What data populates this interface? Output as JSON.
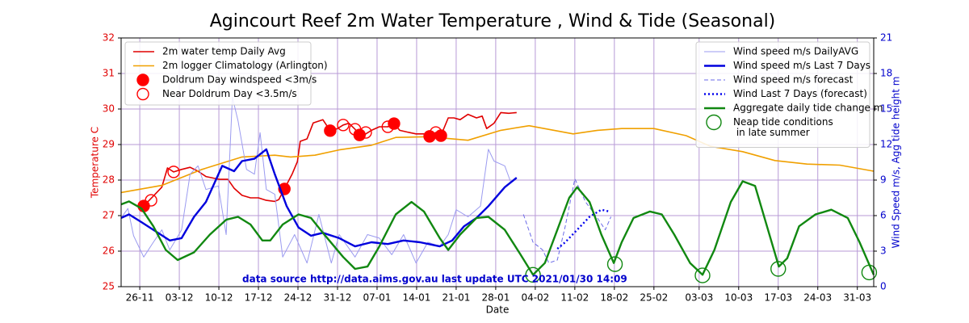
{
  "chart_data": {
    "type": "line",
    "title": "Agincourt Reef 2m Water Temperature , Wind & Tide (Seasonal)",
    "xlabel": "Date",
    "ylabel": "Temperature  C",
    "y2label": "Wind Speed m/s, Agg tide height m",
    "annotation": "data source http://data.aims.gov.au last update UTC 2021/01/30 14:09",
    "xlim": [
      -3.3,
      129.9
    ],
    "xticks": [
      {
        "value": 0,
        "label": "26-11"
      },
      {
        "value": 7,
        "label": "03-12"
      },
      {
        "value": 14,
        "label": "10-12"
      },
      {
        "value": 21,
        "label": "17-12"
      },
      {
        "value": 28,
        "label": "24-12"
      },
      {
        "value": 35,
        "label": "31-12"
      },
      {
        "value": 42,
        "label": "07-01"
      },
      {
        "value": 49,
        "label": "14-01"
      },
      {
        "value": 56,
        "label": "21-01"
      },
      {
        "value": 63,
        "label": "28-01"
      },
      {
        "value": 70,
        "label": "04-02"
      },
      {
        "value": 77,
        "label": "11-02"
      },
      {
        "value": 84,
        "label": "18-02"
      },
      {
        "value": 91,
        "label": "25-02"
      },
      {
        "value": 99,
        "label": "03-03"
      },
      {
        "value": 106,
        "label": "10-03"
      },
      {
        "value": 113,
        "label": "17-03"
      },
      {
        "value": 120,
        "label": "24-03"
      },
      {
        "value": 127,
        "label": "31-03"
      }
    ],
    "ylim": [
      25,
      32
    ],
    "yticks": [
      25,
      26,
      27,
      28,
      29,
      30,
      31,
      32
    ],
    "y2lim": [
      0,
      21
    ],
    "y2ticks": [
      0,
      3,
      6,
      9,
      12,
      15,
      18,
      21
    ],
    "grid": true,
    "legend": {
      "y": "upper left",
      "y2": "upper right"
    },
    "series": [
      {
        "name": "2m water temp Daily Avg",
        "type": "line",
        "color": "#e00000",
        "linewidth": 1.6,
        "linestyle": "solid",
        "x": [
          0.7,
          2.4,
          3.9,
          4.9,
          6,
          7.4,
          8.9,
          10.3,
          11.7,
          14.1,
          15.6,
          16.7,
          18.1,
          19.6,
          21,
          22.4,
          23.9,
          24.6,
          25.6,
          27,
          27.9,
          28.4,
          29.6,
          30.7,
          32.4,
          33.7,
          35,
          36,
          37,
          38.1,
          39.1,
          40,
          41,
          42.4,
          43.9,
          45,
          46,
          47.4,
          48.9,
          50.3,
          51.3,
          52.4,
          53.3,
          54.6,
          55.6,
          56.7,
          58.1,
          59.6,
          60.6,
          61.4,
          62.7,
          63.9,
          65.3,
          66.7
        ],
        "values": [
          27.27,
          27.55,
          27.8,
          28.34,
          28.23,
          28.3,
          28.36,
          28.25,
          28.1,
          28.02,
          28.02,
          27.77,
          27.57,
          27.5,
          27.5,
          27.43,
          27.4,
          27.45,
          27.75,
          28.18,
          28.52,
          29.09,
          29.16,
          29.61,
          29.7,
          29.39,
          29.45,
          29.55,
          29.6,
          29.43,
          29.2,
          29.3,
          29.4,
          29.5,
          29.5,
          29.6,
          29.4,
          29.35,
          29.3,
          29.3,
          29.23,
          29.34,
          29.25,
          29.75,
          29.75,
          29.7,
          29.85,
          29.75,
          29.8,
          29.45,
          29.6,
          29.9,
          29.88,
          29.9
        ]
      },
      {
        "name": "2m logger Climatology (Arlington)",
        "type": "line",
        "color": "#f0a000",
        "linewidth": 1.6,
        "linestyle": "solid",
        "x": [
          -3.3,
          3.9,
          11,
          18.1,
          23.9,
          26.7,
          31,
          35.3,
          41,
          45.3,
          51,
          58.1,
          63.9,
          68.9,
          76.7,
          81,
          85.3,
          91,
          96.7,
          101,
          106.7,
          112.4,
          118.1,
          123.9,
          129.9
        ],
        "values": [
          27.65,
          27.85,
          28.3,
          28.65,
          28.7,
          28.65,
          28.7,
          28.85,
          28.98,
          29.2,
          29.22,
          29.12,
          29.4,
          29.53,
          29.3,
          29.4,
          29.45,
          29.45,
          29.25,
          28.95,
          28.8,
          28.55,
          28.45,
          28.42,
          28.25
        ]
      },
      {
        "name": "Doldrum Day windspeed <3m/s",
        "type": "scatter",
        "marker": "filled",
        "color": "#ff0000",
        "x": [
          0.7,
          25.6,
          33.7,
          38.9,
          45,
          51.3,
          53.3
        ],
        "values": [
          27.27,
          27.75,
          29.39,
          29.27,
          29.59,
          29.23,
          29.25
        ]
      },
      {
        "name": "Near Doldrum Day <3.5m/s",
        "type": "scatter",
        "marker": "open",
        "color": "#ff0000",
        "x": [
          2,
          6,
          36,
          38.1,
          40,
          43.9,
          52.4
        ],
        "values": [
          27.43,
          28.23,
          29.55,
          29.43,
          29.34,
          29.5,
          29.34
        ]
      },
      {
        "name": "Wind speed m/s DailyAVG",
        "type": "line",
        "axis": "y2",
        "color": "#9b9bf0",
        "linewidth": 1,
        "linestyle": "solid",
        "x": [
          -3.3,
          -2.1,
          -1.1,
          0.7,
          2.4,
          3.9,
          5.3,
          7.4,
          8.9,
          10.3,
          11.7,
          13.9,
          15.3,
          16.4,
          17.4,
          18.9,
          20.3,
          21.3,
          22.4,
          23.9,
          25.3,
          27.4,
          29.6,
          31.7,
          33.9,
          35.3,
          38.1,
          40.3,
          42.4,
          44.6,
          46.7,
          48.9,
          51,
          53.1,
          54.6,
          56,
          58.1,
          60.3,
          61.7,
          62.7,
          64.6,
          65.6
        ],
        "values": [
          5.8,
          6.6,
          4.3,
          2.5,
          3.75,
          4.8,
          3.1,
          4.8,
          9.5,
          10.2,
          8.2,
          8.5,
          4.4,
          16,
          14,
          9.9,
          9.5,
          13,
          8.2,
          7.8,
          2.5,
          4.4,
          2.0,
          6.1,
          2.0,
          4.4,
          2.5,
          4.4,
          4.1,
          2.7,
          4.4,
          2.0,
          3.75,
          3.4,
          4.4,
          6.5,
          5.9,
          6.8,
          11.6,
          10.6,
          10.2,
          8.9
        ]
      },
      {
        "name": "Wind speed m/s Last 7 Days",
        "type": "line",
        "axis": "y2",
        "color": "#0000dd",
        "linewidth": 2.4,
        "linestyle": "solid",
        "x": [
          -3.3,
          -1.9,
          0.3,
          2.4,
          5.3,
          7.4,
          9.6,
          11.7,
          14.6,
          16.7,
          18.1,
          20.3,
          22.4,
          23.9,
          26,
          28.1,
          30.3,
          32.4,
          35.3,
          38.1,
          41,
          43.9,
          46.7,
          49.6,
          53.1,
          55.3,
          57.4,
          59.6,
          61.7,
          64.6,
          66.7
        ],
        "values": [
          5.8,
          6.1,
          5.45,
          4.8,
          3.9,
          4.1,
          5.9,
          7.15,
          10.2,
          9.75,
          10.6,
          10.8,
          11.6,
          9.5,
          6.8,
          5.0,
          4.3,
          4.55,
          4.1,
          3.4,
          3.75,
          3.6,
          3.9,
          3.75,
          3.4,
          3.9,
          5.1,
          5.8,
          6.8,
          8.4,
          9.2
        ]
      },
      {
        "name": "Wind speed m/s forecast",
        "type": "line",
        "axis": "y2",
        "color": "#6a6ae8",
        "linewidth": 1,
        "linestyle": "dashed",
        "x": [
          67.9,
          69.6,
          71.3,
          72.4,
          73.9,
          75.3,
          77,
          78.9,
          81,
          82.4,
          83.4
        ],
        "values": [
          6.1,
          3.75,
          3.1,
          2.0,
          2.25,
          5.1,
          9.1,
          7.15,
          5.8,
          4.8,
          5.9
        ]
      },
      {
        "name": "Wind Last 7 Days (forecast)",
        "type": "line",
        "axis": "y2",
        "color": "#0000ee",
        "linewidth": 2.4,
        "linestyle": "dotted",
        "x": [
          73.9,
          75.3,
          77.4,
          79.6,
          81.7,
          83.1
        ],
        "values": [
          3.2,
          3.75,
          4.8,
          5.9,
          6.5,
          6.35
        ]
      },
      {
        "name": "Aggregate daily tide change m",
        "type": "line",
        "axis": "y2",
        "color": "#118811",
        "linewidth": 2.4,
        "linestyle": "solid",
        "x": [
          -3.3,
          -1.9,
          0.3,
          2.4,
          4.6,
          6.7,
          9.6,
          12.4,
          15.3,
          17.4,
          19.6,
          21.7,
          23.1,
          25.3,
          28.1,
          30.3,
          32.4,
          36,
          38.1,
          40.3,
          42.4,
          45.3,
          48.1,
          50.3,
          53.1,
          54.6,
          56.7,
          59.6,
          61.7,
          64.6,
          67.4,
          69.6,
          71.7,
          73.9,
          76,
          77.4,
          79.6,
          81.7,
          83.9,
          85.3,
          87.4,
          90.3,
          92.4,
          94.6,
          97.4,
          99.6,
          101.7,
          104.6,
          106.7,
          108.9,
          111,
          113.1,
          114.6,
          116.7,
          119.6,
          122.4,
          125.3,
          127.4,
          129.9
        ],
        "values": [
          6.95,
          7.2,
          6.6,
          5.1,
          3.1,
          2.25,
          2.9,
          4.4,
          5.65,
          5.9,
          5.25,
          3.9,
          3.9,
          5.25,
          6.1,
          5.8,
          4.55,
          2.5,
          1.5,
          1.7,
          3.4,
          6.1,
          7.15,
          6.35,
          4.1,
          3.1,
          4.4,
          5.8,
          5.9,
          4.8,
          2.7,
          1.0,
          2.0,
          4.8,
          7.5,
          8.4,
          7.15,
          4.4,
          2.0,
          3.75,
          5.8,
          6.35,
          6.1,
          4.4,
          2.0,
          1.0,
          3.1,
          7.15,
          8.9,
          8.5,
          5.1,
          1.7,
          2.4,
          5.1,
          6.1,
          6.5,
          5.8,
          3.75,
          1.0
        ]
      },
      {
        "name": [
          "Neap tide conditions",
          " in late summer"
        ],
        "type": "scatter",
        "axis": "y2",
        "marker": "open-large",
        "color": "#118811",
        "x": [
          69.6,
          84.1,
          99.6,
          113,
          129.1
        ],
        "values": [
          1.0,
          1.9,
          0.95,
          1.5,
          1.2
        ]
      }
    ]
  }
}
